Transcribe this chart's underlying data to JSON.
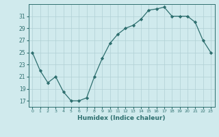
{
  "x": [
    0,
    1,
    2,
    3,
    4,
    5,
    6,
    7,
    8,
    9,
    10,
    11,
    12,
    13,
    14,
    15,
    16,
    17,
    18,
    19,
    20,
    21,
    22,
    23
  ],
  "y": [
    25,
    22,
    20,
    21,
    18.5,
    17,
    17,
    17.5,
    21,
    24,
    26.5,
    28,
    29,
    29.5,
    30.5,
    32,
    32.2,
    32.5,
    31,
    31,
    31,
    30,
    27,
    25
  ],
  "line_color": "#2d6e6e",
  "marker_color": "#2d6e6e",
  "bg_color": "#d0eaed",
  "grid_color": "#b0d0d4",
  "xlabel": "Humidex (Indice chaleur)",
  "yticks": [
    17,
    19,
    21,
    23,
    25,
    27,
    29,
    31
  ],
  "ylim": [
    16.0,
    33.0
  ],
  "xlim": [
    -0.5,
    23.5
  ],
  "tick_color": "#2d6e6e",
  "label_color": "#2d6e6e",
  "axis_color": "#2d6e6e"
}
